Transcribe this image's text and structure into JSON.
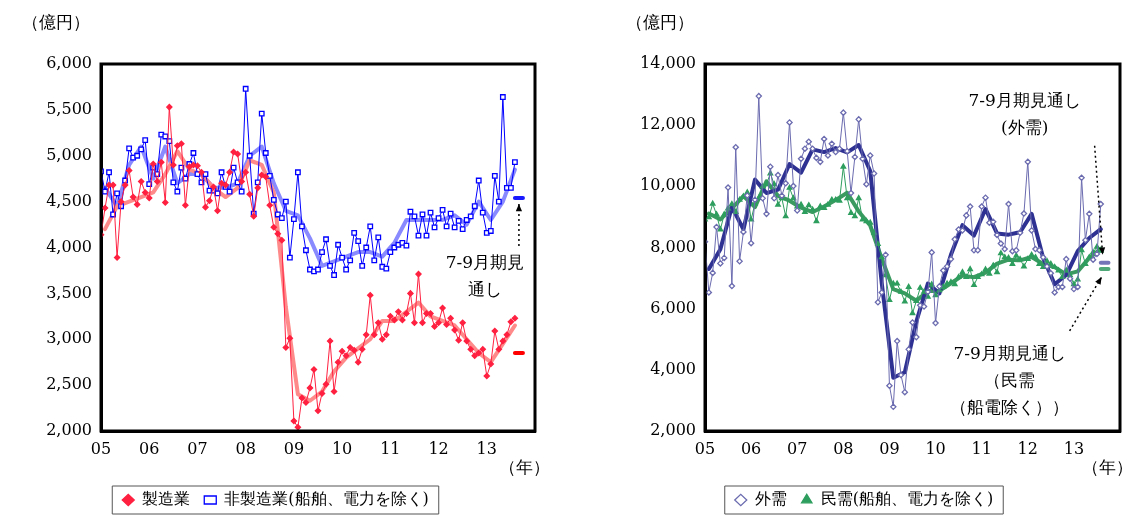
{
  "chart_data": [
    {
      "type": "line",
      "ylabel": "（億円）",
      "xlabel": "（年）",
      "legend": "bottom",
      "xlim": [
        "2005-01",
        "2014-01"
      ],
      "xticks": [
        {
          "value": "2005",
          "label": "05"
        },
        {
          "value": "2006",
          "label": "06"
        },
        {
          "value": "2007",
          "label": "07"
        },
        {
          "value": "2008",
          "label": "08"
        },
        {
          "value": "2009",
          "label": "09"
        },
        {
          "value": "2010",
          "label": "10"
        },
        {
          "value": "2011",
          "label": "11"
        },
        {
          "value": "2012",
          "label": "12"
        },
        {
          "value": "2013",
          "label": "13"
        }
      ],
      "ylim": [
        2000,
        6000
      ],
      "yticks": [
        {
          "value": 2000,
          "label": "2,000"
        },
        {
          "value": 2500,
          "label": "2,500"
        },
        {
          "value": 3000,
          "label": "3,000"
        },
        {
          "value": 3500,
          "label": "3,500"
        },
        {
          "value": 4000,
          "label": "4,000"
        },
        {
          "value": 4500,
          "label": "4,500"
        },
        {
          "value": 5000,
          "label": "5,000"
        },
        {
          "value": 5500,
          "label": "5,500"
        },
        {
          "value": 6000,
          "label": "6,000"
        }
      ],
      "x": [
        "2005-01",
        "2005-02",
        "2005-03",
        "2005-04",
        "2005-05",
        "2005-06",
        "2005-07",
        "2005-08",
        "2005-09",
        "2005-10",
        "2005-11",
        "2005-12",
        "2006-01",
        "2006-02",
        "2006-03",
        "2006-04",
        "2006-05",
        "2006-06",
        "2006-07",
        "2006-08",
        "2006-09",
        "2006-10",
        "2006-11",
        "2006-12",
        "2007-01",
        "2007-02",
        "2007-03",
        "2007-04",
        "2007-05",
        "2007-06",
        "2007-07",
        "2007-08",
        "2007-09",
        "2007-10",
        "2007-11",
        "2007-12",
        "2008-01",
        "2008-02",
        "2008-03",
        "2008-04",
        "2008-05",
        "2008-06",
        "2008-07",
        "2008-08",
        "2008-09",
        "2008-10",
        "2008-11",
        "2008-12",
        "2009-01",
        "2009-02",
        "2009-03",
        "2009-04",
        "2009-05",
        "2009-06",
        "2009-07",
        "2009-08",
        "2009-09",
        "2009-10",
        "2009-11",
        "2009-12",
        "2010-01",
        "2010-02",
        "2010-03",
        "2010-04",
        "2010-05",
        "2010-06",
        "2010-07",
        "2010-08",
        "2010-09",
        "2010-10",
        "2010-11",
        "2010-12",
        "2011-01",
        "2011-02",
        "2011-03",
        "2011-04",
        "2011-05",
        "2011-06",
        "2011-07",
        "2011-08",
        "2011-09",
        "2011-10",
        "2011-11",
        "2011-12",
        "2012-01",
        "2012-02",
        "2012-03",
        "2012-04",
        "2012-05",
        "2012-06",
        "2012-07",
        "2012-08",
        "2012-09",
        "2012-10",
        "2012-11",
        "2012-12",
        "2013-01",
        "2013-02",
        "2013-03",
        "2013-04",
        "2013-05",
        "2013-06",
        "2013-07",
        "2013-08"
      ],
      "series": [
        {
          "color": "#ff8a8a",
          "marker": "none",
          "x": [
            "2005-02",
            "2005-05",
            "2005-08",
            "2005-11",
            "2006-02",
            "2006-05",
            "2006-08",
            "2006-11",
            "2007-02",
            "2007-05",
            "2007-08",
            "2007-11",
            "2008-02",
            "2008-05",
            "2008-08",
            "2008-11",
            "2009-02",
            "2009-05",
            "2009-08",
            "2009-11",
            "2010-02",
            "2010-05",
            "2010-08",
            "2010-11",
            "2011-02",
            "2011-05",
            "2011-08",
            "2011-11",
            "2012-02",
            "2012-05",
            "2012-08",
            "2012-11",
            "2013-02",
            "2013-05",
            "2013-08"
          ],
          "values": [
            4200,
            4450,
            4500,
            4550,
            4600,
            4800,
            5050,
            4850,
            4800,
            4650,
            4550,
            4650,
            4950,
            4900,
            4600,
            3350,
            2400,
            2330,
            2430,
            2650,
            2800,
            2900,
            3000,
            3200,
            3200,
            3300,
            3400,
            3250,
            3200,
            3150,
            3000,
            2850,
            2750,
            2950,
            3150
          ]
        },
        {
          "color": "#8a8aff",
          "marker": "none",
          "x": [
            "2005-02",
            "2005-05",
            "2005-08",
            "2005-11",
            "2006-02",
            "2006-05",
            "2006-08",
            "2006-11",
            "2007-02",
            "2007-05",
            "2007-08",
            "2007-11",
            "2008-02",
            "2008-05",
            "2008-08",
            "2008-11",
            "2009-02",
            "2009-05",
            "2009-08",
            "2009-11",
            "2010-02",
            "2010-05",
            "2010-08",
            "2010-11",
            "2011-02",
            "2011-05",
            "2011-08",
            "2011-11",
            "2012-02",
            "2012-05",
            "2012-08",
            "2012-11",
            "2013-02",
            "2013-05",
            "2013-08"
          ],
          "values": [
            4650,
            4450,
            4900,
            5100,
            4750,
            5100,
            4700,
            4800,
            4800,
            4650,
            4650,
            4700,
            5000,
            5100,
            4700,
            4400,
            4350,
            4100,
            3800,
            3850,
            3900,
            3950,
            3950,
            3900,
            4050,
            4300,
            4300,
            4300,
            4300,
            4350,
            4250,
            4500,
            4300,
            4500,
            4850
          ]
        },
        {
          "name": "製造業",
          "color": "#ff2040",
          "marker": "diamond",
          "values": [
            4140,
            4430,
            4680,
            4680,
            3890,
            4500,
            4680,
            4840,
            4550,
            4470,
            4720,
            4600,
            4540,
            4910,
            4720,
            4930,
            4490,
            5530,
            4900,
            5110,
            5130,
            4460,
            4880,
            4900,
            4890,
            4820,
            4440,
            4510,
            4660,
            4400,
            4700,
            4680,
            4820,
            5040,
            5020,
            4720,
            4820,
            4580,
            4340,
            4650,
            4790,
            4770,
            4460,
            4220,
            4150,
            4080,
            2910,
            3010,
            2110,
            2040,
            2360,
            2310,
            2470,
            2670,
            2220,
            2410,
            2510,
            2980,
            2430,
            2750,
            2870,
            2820,
            2910,
            2880,
            2750,
            2890,
            3050,
            3480,
            3050,
            3180,
            3000,
            3050,
            3250,
            3210,
            3300,
            3210,
            3280,
            3500,
            3180,
            3710,
            3180,
            3280,
            3280,
            3140,
            3180,
            3340,
            3160,
            3230,
            3100,
            2990,
            3180,
            2980,
            2890,
            2820,
            2850,
            2890,
            2600,
            2730,
            3090,
            2890,
            2980,
            3050,
            3190,
            3230
          ]
        },
        {
          "name": "非製造業(船舶、電力を除く)",
          "color": "#0000ff",
          "marker": "square",
          "values": [
            4830,
            4610,
            4820,
            4360,
            4590,
            4450,
            4730,
            5080,
            4980,
            5000,
            5070,
            5170,
            4690,
            4870,
            4800,
            5230,
            5210,
            5160,
            4710,
            4610,
            4870,
            4750,
            4910,
            5030,
            4800,
            4710,
            4800,
            4620,
            4620,
            4590,
            4820,
            4660,
            4610,
            4870,
            4710,
            4610,
            5730,
            5000,
            4370,
            4710,
            5460,
            5030,
            4780,
            4520,
            4360,
            4320,
            4500,
            3890,
            4310,
            4820,
            4230,
            3970,
            3760,
            3740,
            3760,
            3950,
            4090,
            3800,
            3700,
            4030,
            3890,
            3760,
            3860,
            4160,
            4070,
            3800,
            4000,
            4230,
            3860,
            4110,
            3790,
            3770,
            3950,
            4000,
            4030,
            4050,
            4020,
            4390,
            4340,
            4130,
            4360,
            4130,
            4380,
            4220,
            4320,
            4410,
            4230,
            4370,
            4220,
            4290,
            4200,
            4300,
            4340,
            4450,
            4730,
            4380,
            4160,
            4180,
            4780,
            4500,
            5640,
            4650,
            4650,
            4930
          ]
        },
        {
          "color": "#1a1aff",
          "marker": "none",
          "x": [
            "2013-08",
            "2013-10"
          ],
          "values": [
            4540,
            4540
          ]
        },
        {
          "color": "#ff0000",
          "marker": "none",
          "x": [
            "2013-08",
            "2013-10"
          ],
          "values": [
            2850,
            2850
          ]
        }
      ],
      "annotations": [
        {
          "text": "7-9月期見通し",
          "x": "2013-09",
          "y": 4540
        }
      ]
    },
    {
      "type": "line",
      "ylabel": "（億円）",
      "xlabel": "（年）",
      "legend": "bottom",
      "xlim": [
        "2005-01",
        "2014-01"
      ],
      "xticks": [
        {
          "value": "2005",
          "label": "05"
        },
        {
          "value": "2006",
          "label": "06"
        },
        {
          "value": "2007",
          "label": "07"
        },
        {
          "value": "2008",
          "label": "08"
        },
        {
          "value": "2009",
          "label": "09"
        },
        {
          "value": "2010",
          "label": "10"
        },
        {
          "value": "2011",
          "label": "11"
        },
        {
          "value": "2012",
          "label": "12"
        },
        {
          "value": "2013",
          "label": "13"
        }
      ],
      "ylim": [
        2000,
        14000
      ],
      "yticks": [
        {
          "value": 2000,
          "label": "2,000"
        },
        {
          "value": 4000,
          "label": "4,000"
        },
        {
          "value": 6000,
          "label": "6,000"
        },
        {
          "value": 8000,
          "label": "8,000"
        },
        {
          "value": 10000,
          "label": "10,000"
        },
        {
          "value": 12000,
          "label": "12,000"
        },
        {
          "value": 14000,
          "label": "14,000"
        }
      ],
      "x": [
        "2005-01",
        "2005-02",
        "2005-03",
        "2005-04",
        "2005-05",
        "2005-06",
        "2005-07",
        "2005-08",
        "2005-09",
        "2005-10",
        "2005-11",
        "2005-12",
        "2006-01",
        "2006-02",
        "2006-03",
        "2006-04",
        "2006-05",
        "2006-06",
        "2006-07",
        "2006-08",
        "2006-09",
        "2006-10",
        "2006-11",
        "2006-12",
        "2007-01",
        "2007-02",
        "2007-03",
        "2007-04",
        "2007-05",
        "2007-06",
        "2007-07",
        "2007-08",
        "2007-09",
        "2007-10",
        "2007-11",
        "2007-12",
        "2008-01",
        "2008-02",
        "2008-03",
        "2008-04",
        "2008-05",
        "2008-06",
        "2008-07",
        "2008-08",
        "2008-09",
        "2008-10",
        "2008-11",
        "2008-12",
        "2009-01",
        "2009-02",
        "2009-03",
        "2009-04",
        "2009-05",
        "2009-06",
        "2009-07",
        "2009-08",
        "2009-09",
        "2009-10",
        "2009-11",
        "2009-12",
        "2010-01",
        "2010-02",
        "2010-03",
        "2010-04",
        "2010-05",
        "2010-06",
        "2010-07",
        "2010-08",
        "2010-09",
        "2010-10",
        "2010-11",
        "2010-12",
        "2011-01",
        "2011-02",
        "2011-03",
        "2011-04",
        "2011-05",
        "2011-06",
        "2011-07",
        "2011-08",
        "2011-09",
        "2011-10",
        "2011-11",
        "2011-12",
        "2012-01",
        "2012-02",
        "2012-03",
        "2012-04",
        "2012-05",
        "2012-06",
        "2012-07",
        "2012-08",
        "2012-09",
        "2012-10",
        "2012-11",
        "2012-12",
        "2013-01",
        "2013-02",
        "2013-03",
        "2013-04",
        "2013-05",
        "2013-06",
        "2013-07",
        "2013-08"
      ],
      "series": [
        {
          "color": "#2e3192",
          "marker": "none",
          "x": [
            "2005-02",
            "2005-05",
            "2005-08",
            "2005-11",
            "2006-02",
            "2006-05",
            "2006-08",
            "2006-11",
            "2007-02",
            "2007-05",
            "2007-08",
            "2007-11",
            "2008-02",
            "2008-05",
            "2008-08",
            "2008-11",
            "2009-02",
            "2009-05",
            "2009-08",
            "2009-11",
            "2010-02",
            "2010-05",
            "2010-08",
            "2010-11",
            "2011-02",
            "2011-05",
            "2011-08",
            "2011-11",
            "2012-02",
            "2012-05",
            "2012-08",
            "2012-11",
            "2013-02",
            "2013-05",
            "2013-08"
          ],
          "values": [
            7300,
            7940,
            9330,
            8590,
            10220,
            9780,
            9890,
            10730,
            10450,
            11210,
            11120,
            11250,
            11110,
            11350,
            10500,
            6830,
            3740,
            3920,
            5580,
            6820,
            6500,
            7760,
            8730,
            8390,
            9260,
            8460,
            8420,
            8500,
            9100,
            7660,
            6800,
            7100,
            7880,
            8310,
            8600
          ]
        },
        {
          "color": "#3a9a60",
          "marker": "none",
          "x": [
            "2005-02",
            "2005-05",
            "2005-08",
            "2005-11",
            "2006-02",
            "2006-05",
            "2006-08",
            "2006-11",
            "2007-02",
            "2007-05",
            "2007-08",
            "2007-11",
            "2008-02",
            "2008-05",
            "2008-08",
            "2008-11",
            "2009-02",
            "2009-05",
            "2009-08",
            "2009-11",
            "2010-02",
            "2010-05",
            "2010-08",
            "2010-11",
            "2011-02",
            "2011-05",
            "2011-08",
            "2011-11",
            "2012-02",
            "2012-05",
            "2012-08",
            "2012-11",
            "2013-02",
            "2013-05",
            "2013-08"
          ],
          "values": [
            9110,
            8920,
            9280,
            9680,
            9320,
            10160,
            9690,
            9530,
            9300,
            9160,
            9340,
            9550,
            9790,
            9180,
            8720,
            7630,
            6640,
            6500,
            6260,
            6580,
            6580,
            6830,
            7080,
            7030,
            7180,
            7470,
            7600,
            7580,
            7690,
            7460,
            7360,
            7120,
            7220,
            7660,
            7960
          ]
        },
        {
          "name": "外需",
          "color": "#6b6bb0",
          "marker": "diamond",
          "values": [
            8190,
            6530,
            7170,
            8670,
            7480,
            7660,
            9960,
            6740,
            11280,
            7550,
            8510,
            9700,
            8140,
            9560,
            12950,
            9610,
            9100,
            10640,
            9610,
            10370,
            9690,
            10100,
            12090,
            10010,
            9210,
            10900,
            11230,
            11460,
            11230,
            10930,
            10800,
            11550,
            11010,
            11390,
            11120,
            11230,
            12410,
            11150,
            9780,
            10960,
            12190,
            10900,
            10070,
            11010,
            10420,
            6210,
            6530,
            7760,
            3480,
            2790,
            4940,
            3830,
            3270,
            4670,
            5550,
            5070,
            6110,
            6070,
            6550,
            7840,
            5530,
            6730,
            7250,
            7380,
            7620,
            8270,
            8590,
            8560,
            9050,
            9340,
            7910,
            7910,
            9340,
            9630,
            8810,
            8840,
            8410,
            8130,
            7950,
            9420,
            7880,
            7910,
            8480,
            9110,
            10800,
            8560,
            7950,
            7910,
            7680,
            7380,
            7160,
            6530,
            6710,
            6710,
            7620,
            6980,
            6640,
            6710,
            10280,
            8240,
            9100,
            7600,
            7790,
            9420
          ]
        },
        {
          "name": "民需(船舶、電力を除く)",
          "color": "#2e9e5e",
          "marker": "triangle",
          "values": [
            8910,
            8990,
            9430,
            9080,
            8590,
            9080,
            9270,
            9420,
            9160,
            9560,
            9670,
            9800,
            8910,
            9440,
            9620,
            9990,
            10070,
            10420,
            10070,
            9400,
            9610,
            9020,
            9950,
            9610,
            9340,
            9400,
            9160,
            9380,
            9240,
            8860,
            9340,
            9290,
            9400,
            9560,
            9560,
            9530,
            10640,
            9610,
            9130,
            9020,
            9610,
            8910,
            8860,
            8810,
            8480,
            8110,
            7680,
            7090,
            6280,
            6820,
            6820,
            6550,
            6230,
            6710,
            5850,
            6250,
            6680,
            6550,
            6390,
            6790,
            6440,
            6600,
            6710,
            6820,
            6870,
            6800,
            7030,
            7190,
            7030,
            7290,
            6770,
            7030,
            7120,
            7280,
            7140,
            7410,
            7190,
            7810,
            7680,
            7660,
            7460,
            7730,
            7620,
            7380,
            7620,
            7760,
            7680,
            7460,
            7360,
            7550,
            7460,
            7360,
            7250,
            7030,
            7250,
            7090,
            6800,
            6950,
            7910,
            7460,
            7680,
            7840,
            8020,
            7890
          ]
        },
        {
          "color": "#7474b8",
          "marker": "none",
          "x": [
            "2013-08",
            "2013-10"
          ],
          "values": [
            7500,
            7500
          ]
        },
        {
          "color": "#4fa878",
          "marker": "none",
          "x": [
            "2013-08",
            "2013-10"
          ],
          "values": [
            7300,
            7300
          ]
        }
      ],
      "annotations": [
        {
          "text": "7-9月期見通し(外需)",
          "x": "2013-09",
          "y": 7500
        },
        {
          "text": "7-9月期見通し（民需（船電除く））",
          "x": "2013-09",
          "y": 7300
        }
      ]
    }
  ]
}
